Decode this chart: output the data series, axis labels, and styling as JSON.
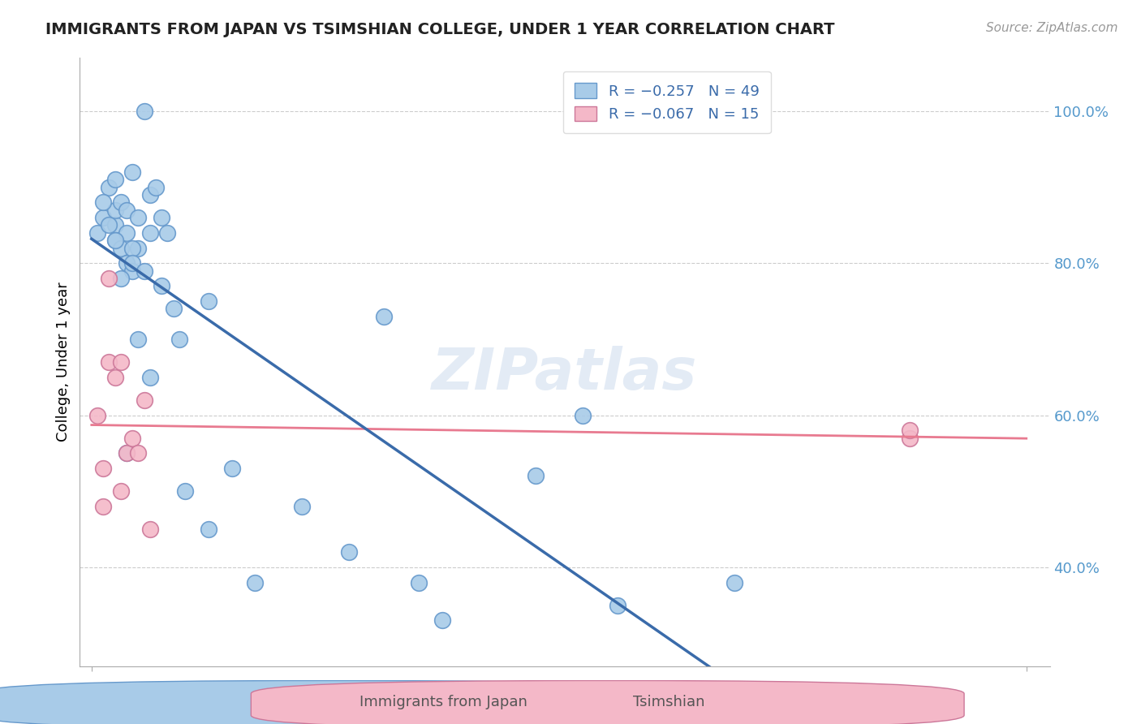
{
  "title": "IMMIGRANTS FROM JAPAN VS TSIMSHIAN COLLEGE, UNDER 1 YEAR CORRELATION CHART",
  "source_text": "Source: ZipAtlas.com",
  "ylabel": "College, Under 1 year",
  "xlim": [
    -1.0,
    82.0
  ],
  "ylim": [
    27.0,
    107.0
  ],
  "yticks": [
    40.0,
    60.0,
    80.0,
    100.0
  ],
  "ytick_labels": [
    "40.0%",
    "60.0%",
    "80.0%",
    "100.0%"
  ],
  "legend_r1": "R = −0.257",
  "legend_n1": "N = 49",
  "legend_r2": "R = −0.067",
  "legend_n2": "N = 15",
  "color_blue": "#A8CBE8",
  "color_pink": "#F4B8C8",
  "color_line_blue": "#3A6BAA",
  "color_line_pink": "#E87A90",
  "color_line_dashed": "#A8CBE8",
  "watermark": "ZIPatlas",
  "japan_x": [
    0.5,
    1.0,
    1.5,
    2.0,
    2.0,
    2.0,
    2.0,
    2.5,
    2.5,
    3.0,
    3.0,
    3.0,
    3.5,
    3.5,
    4.0,
    4.0,
    4.5,
    5.0,
    5.0,
    5.5,
    6.0,
    6.5,
    7.0,
    8.0,
    10.0,
    10.0,
    12.0,
    14.0,
    18.0,
    22.0,
    25.0,
    28.0,
    30.0,
    38.0,
    42.0,
    45.0,
    55.0,
    1.0,
    1.5,
    2.5,
    3.5,
    4.0,
    5.0,
    6.0,
    7.5,
    3.5,
    2.0,
    4.5,
    3.0
  ],
  "japan_y": [
    84.0,
    86.0,
    90.0,
    85.0,
    87.0,
    83.0,
    91.0,
    88.0,
    82.0,
    87.0,
    84.0,
    80.0,
    92.0,
    79.0,
    86.0,
    82.0,
    100.0,
    89.0,
    84.0,
    90.0,
    86.0,
    84.0,
    74.0,
    50.0,
    75.0,
    45.0,
    53.0,
    38.0,
    48.0,
    42.0,
    73.0,
    38.0,
    33.0,
    52.0,
    60.0,
    35.0,
    38.0,
    88.0,
    85.0,
    78.0,
    82.0,
    70.0,
    65.0,
    77.0,
    70.0,
    80.0,
    83.0,
    79.0,
    55.0
  ],
  "tsimshian_x": [
    0.5,
    1.0,
    1.5,
    1.5,
    2.0,
    2.5,
    2.5,
    3.0,
    3.5,
    4.0,
    4.5,
    5.0,
    70.0,
    70.0,
    1.0
  ],
  "tsimshian_y": [
    60.0,
    53.0,
    67.0,
    78.0,
    65.0,
    67.0,
    50.0,
    55.0,
    57.0,
    55.0,
    62.0,
    45.0,
    57.0,
    58.0,
    48.0
  ],
  "blue_solid_xrange": [
    0.0,
    57.0
  ],
  "blue_dashed_xrange": [
    57.0,
    80.0
  ],
  "pink_line_xrange": [
    0.0,
    80.0
  ]
}
